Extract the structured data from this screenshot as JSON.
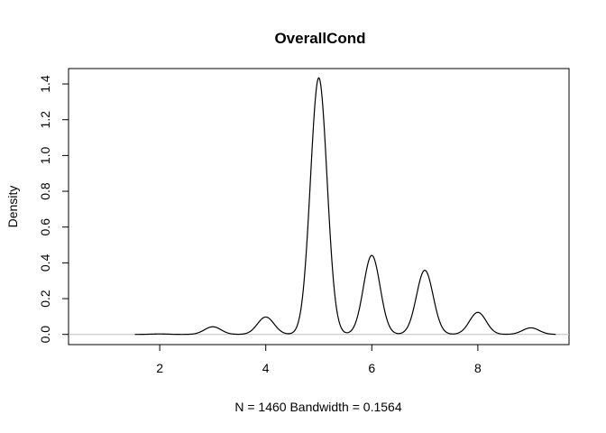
{
  "chart_data": {
    "type": "line",
    "title": "OverallCond",
    "xlabel": "N = 1460   Bandwidth = 0.1564",
    "ylabel": "Density",
    "xlim": [
      0.28,
      9.72
    ],
    "ylim": [
      -0.057,
      1.486
    ],
    "xticks": [
      2,
      4,
      6,
      8
    ],
    "yticks": [
      0.0,
      0.2,
      0.4,
      0.6,
      0.8,
      1.0,
      1.2,
      1.4
    ],
    "ytick_labels": [
      "0.0",
      "0.2",
      "0.4",
      "0.6",
      "0.8",
      "1.0",
      "1.2",
      "1.4"
    ],
    "baseline": 0,
    "baseline_color": "#bebebe",
    "line_color": "#000000",
    "grid": false,
    "legend": "none",
    "n": 1460,
    "bandwidth": 0.1564,
    "x_range": [
      1.53,
      9.47
    ],
    "modes": [
      {
        "x": 2,
        "peak": 0.0026
      },
      {
        "x": 3,
        "peak": 0.0426
      },
      {
        "x": 4,
        "peak": 0.0972
      },
      {
        "x": 5,
        "peak": 1.4345
      },
      {
        "x": 6,
        "peak": 0.4418
      },
      {
        "x": 7,
        "peak": 0.3587
      },
      {
        "x": 8,
        "peak": 0.1233
      },
      {
        "x": 9,
        "peak": 0.0367
      }
    ]
  }
}
